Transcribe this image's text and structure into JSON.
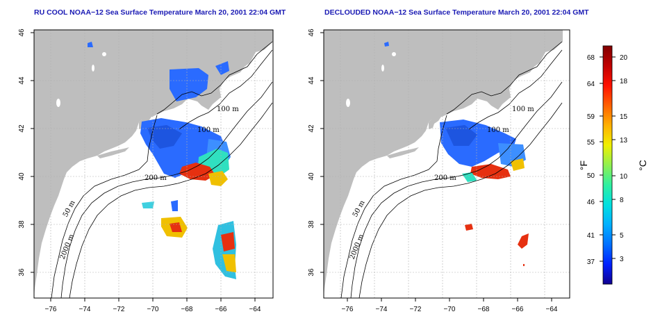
{
  "panels": [
    {
      "title": "RU COOL NOAA−12 Sea Surface Temperature March 20, 2001 22:04 GMT",
      "contour_labels": [
        "100 m",
        "100 m",
        "200 m",
        "50 m",
        "2000 m"
      ]
    },
    {
      "title": "DECLOUDED NOAA−12 Sea Surface Temperature March 20, 2001 22:04 GMT",
      "contour_labels": [
        "100 m",
        "100 m",
        "200 m",
        "50 m",
        "2000 m"
      ]
    }
  ],
  "axes": {
    "lon_ticks": [
      "−76",
      "−74",
      "−72",
      "−70",
      "−68",
      "−66",
      "−64"
    ],
    "lat_ticks": [
      "46",
      "44",
      "42",
      "40",
      "38",
      "36"
    ]
  },
  "colorbar": {
    "fahrenheit_label": "°F",
    "celsius_label": "°C",
    "fahrenheit_ticks": [
      "68",
      "64",
      "59",
      "55",
      "50",
      "46",
      "41",
      "37"
    ],
    "celsius_ticks": [
      "20",
      "18",
      "15",
      "13",
      "10",
      "8",
      "5",
      "3"
    ],
    "colors": [
      "#100090",
      "#0020ff",
      "#0070ff",
      "#00b0ff",
      "#00e0e0",
      "#30f0a0",
      "#90f050",
      "#f0f000",
      "#ffb000",
      "#ff6000",
      "#ff1000",
      "#c00000",
      "#800000"
    ]
  },
  "colors": {
    "land": "#bebebe",
    "title": "#1a1ab4",
    "grid": "#b0b0b0"
  }
}
